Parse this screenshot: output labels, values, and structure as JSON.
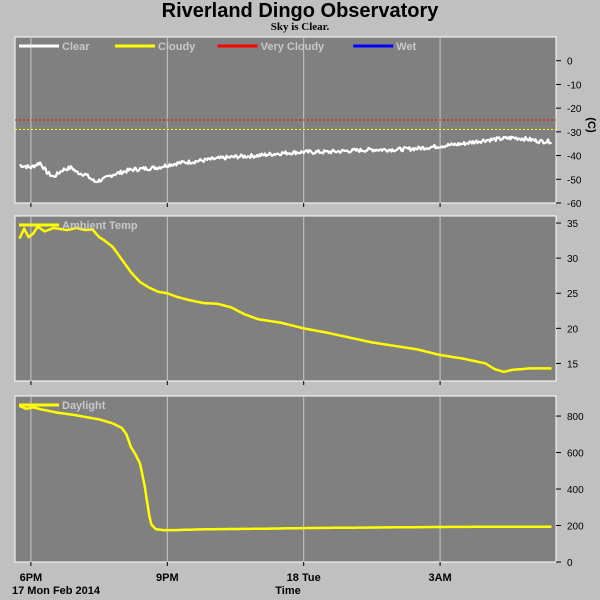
{
  "title": "Riverland Dingo Observatory",
  "subtitle": "Sky is Clear.",
  "x_axis": {
    "label": "Time",
    "date_label": "17 Mon Feb 2014",
    "ticks": [
      {
        "h": 0.0,
        "label": "6PM"
      },
      {
        "h": 3.0,
        "label": "9PM"
      },
      {
        "h": 6.0,
        "label": "18 Tue"
      },
      {
        "h": 9.0,
        "label": "3AM"
      }
    ],
    "range_hours": [
      -0.35,
      11.55
    ]
  },
  "colors": {
    "panel_bg": "#808080",
    "grid": "#c8c8c8",
    "clear": "#ffffff",
    "cloudy": "#ffff00",
    "very_cloudy": "#ff0000",
    "wet": "#0000ff",
    "yellow": "#ffff00"
  },
  "chart_data": [
    {
      "type": "line",
      "id": "sky",
      "ylabel": "(C)",
      "ylim": [
        -60,
        10
      ],
      "yticks": [
        0,
        -10,
        -20,
        -30,
        -40,
        -50,
        -60
      ],
      "legend": [
        {
          "label": "Clear",
          "color": "#ffffff"
        },
        {
          "label": "Cloudy",
          "color": "#ffff00"
        },
        {
          "label": "Very Cloudy",
          "color": "#ff0000"
        },
        {
          "label": "Wet",
          "color": "#0000ff"
        }
      ],
      "thresholds": [
        {
          "name": "Very Cloudy",
          "value": -25,
          "color": "#ff0000"
        },
        {
          "name": "Cloudy",
          "value": -29,
          "color": "#ffff00"
        }
      ],
      "series": [
        {
          "name": "Clear",
          "color": "#ffffff",
          "width": 2.2,
          "noise": 0.7,
          "x": [
            -0.25,
            0.0,
            0.2,
            0.35,
            0.5,
            0.7,
            0.9,
            1.0,
            1.2,
            1.4,
            1.6,
            1.8,
            2.0,
            2.2,
            2.5,
            2.8,
            3.0,
            3.3,
            3.6,
            4.0,
            4.5,
            5.0,
            5.5,
            6.0,
            6.5,
            7.0,
            7.5,
            8.0,
            8.5,
            9.0,
            9.5,
            10.0,
            10.3,
            10.6,
            10.9,
            11.2,
            11.45
          ],
          "y": [
            -44,
            -45,
            -43,
            -47,
            -49,
            -46,
            -45,
            -47,
            -48,
            -51,
            -50,
            -48,
            -47,
            -46,
            -45.5,
            -45,
            -44,
            -43,
            -42.5,
            -41.5,
            -40.5,
            -40,
            -39,
            -38.5,
            -38.5,
            -38,
            -37.5,
            -37.5,
            -37,
            -36,
            -35,
            -33.5,
            -33,
            -32.5,
            -33,
            -34,
            -34
          ]
        }
      ]
    },
    {
      "type": "line",
      "id": "ambient",
      "ylim": [
        12.5,
        36
      ],
      "yticks": [
        35,
        30,
        25,
        20,
        15
      ],
      "legend": [
        {
          "label": "Ambient Temp",
          "color": "#ffff00"
        }
      ],
      "series": [
        {
          "name": "Ambient Temp",
          "color": "#ffff00",
          "width": 2.5,
          "noise": 0,
          "x": [
            -0.25,
            -0.15,
            -0.05,
            0.05,
            0.15,
            0.3,
            0.5,
            0.8,
            1.0,
            1.2,
            1.35,
            1.5,
            1.6,
            1.8,
            2.0,
            2.2,
            2.4,
            2.6,
            2.8,
            3.0,
            3.2,
            3.5,
            3.8,
            4.1,
            4.4,
            4.7,
            5.0,
            5.5,
            6.0,
            6.5,
            7.0,
            7.5,
            8.0,
            8.5,
            9.0,
            9.5,
            10.0,
            10.2,
            10.4,
            10.6,
            11.0,
            11.45
          ],
          "y": [
            32.8,
            34.2,
            33.0,
            33.5,
            34.5,
            33.8,
            34.3,
            34.0,
            34.3,
            34.0,
            34.1,
            33.0,
            32.6,
            31.6,
            29.8,
            28.0,
            26.6,
            25.8,
            25.2,
            25.0,
            24.5,
            24.0,
            23.6,
            23.5,
            23.0,
            22.0,
            21.3,
            20.8,
            20.0,
            19.4,
            18.7,
            18.0,
            17.5,
            17.0,
            16.2,
            15.7,
            15.0,
            14.2,
            13.8,
            14.1,
            14.3,
            14.3
          ]
        }
      ]
    },
    {
      "type": "line",
      "id": "daylight",
      "ylim": [
        0,
        910
      ],
      "yticks": [
        800,
        600,
        400,
        200,
        0
      ],
      "legend": [
        {
          "label": "Daylight",
          "color": "#ffff00"
        }
      ],
      "series": [
        {
          "name": "Daylight",
          "color": "#ffff00",
          "width": 2.5,
          "noise": 0,
          "x": [
            -0.25,
            -0.1,
            0.05,
            0.2,
            0.4,
            0.6,
            0.9,
            1.2,
            1.5,
            1.8,
            2.0,
            2.1,
            2.2,
            2.3,
            2.4,
            2.5,
            2.6,
            2.65,
            2.75,
            2.9,
            3.2,
            3.6,
            4.0,
            5.0,
            6.0,
            7.0,
            8.0,
            9.0,
            10.0,
            11.45
          ],
          "y": [
            855,
            840,
            848,
            838,
            828,
            818,
            808,
            795,
            782,
            760,
            735,
            700,
            630,
            590,
            540,
            420,
            260,
            205,
            180,
            175,
            175,
            178,
            180,
            182,
            186,
            188,
            190,
            192,
            193,
            193
          ]
        }
      ]
    }
  ]
}
